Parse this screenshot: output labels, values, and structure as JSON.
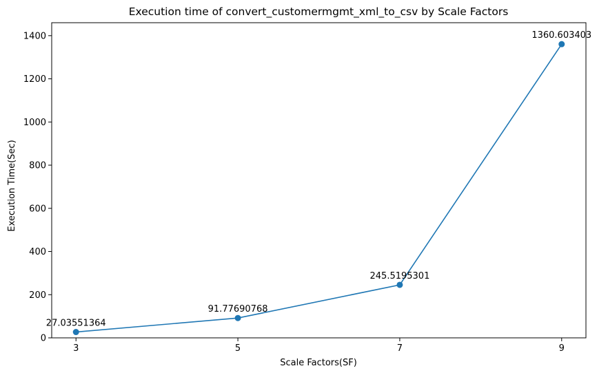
{
  "chart_data": {
    "type": "line",
    "title": "Execution time of convert_customermgmt_xml_to_csv by Scale Factors",
    "xlabel": "Scale Factors(SF)",
    "ylabel": "Execution Time(Sec)",
    "x": [
      3,
      5,
      7,
      9
    ],
    "x_tick_labels": [
      "3",
      "5",
      "7",
      "9"
    ],
    "xlim": [
      2.7,
      9.3
    ],
    "ylim": [
      0,
      1460
    ],
    "y_ticks": [
      0,
      200,
      400,
      600,
      800,
      1000,
      1200,
      1400
    ],
    "y_tick_labels": [
      "0",
      "200",
      "400",
      "600",
      "800",
      "1000",
      "1200",
      "1400"
    ],
    "series": [
      {
        "values": [
          27.03551364,
          91.77690768,
          245.5195301,
          1360.603403
        ],
        "data_labels": [
          "27.03551364",
          "91.77690768",
          "245.5195301",
          "1360.603403"
        ],
        "color": "#1f77b4",
        "marker": "circle"
      }
    ],
    "grid": false,
    "legend": "none"
  }
}
